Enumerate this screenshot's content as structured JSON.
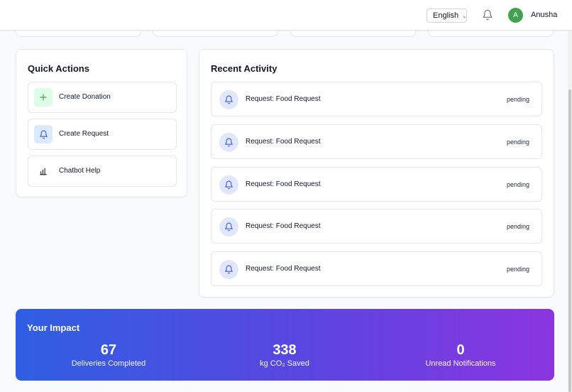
{
  "header": {
    "language": "English",
    "avatar_initial": "A",
    "user_name": "Anusha"
  },
  "quick_actions": {
    "title": "Quick Actions",
    "items": [
      {
        "label": "Create Donation",
        "icon": "plus-icon"
      },
      {
        "label": "Create Request",
        "icon": "bell-icon"
      },
      {
        "label": "Chatbot Help",
        "icon": "bar-chart-icon"
      }
    ]
  },
  "recent_activity": {
    "title": "Recent Activity",
    "items": [
      {
        "label": "Request: Food Request",
        "status": "pending"
      },
      {
        "label": "Request: Food Request",
        "status": "pending"
      },
      {
        "label": "Request: Food Request",
        "status": "pending"
      },
      {
        "label": "Request: Food Request",
        "status": "pending"
      },
      {
        "label": "Request: Food Request",
        "status": "pending"
      }
    ]
  },
  "impact": {
    "title": "Your Impact",
    "stats": [
      {
        "value": "67",
        "label": "Deliveries Completed"
      },
      {
        "value": "338",
        "label": "kg CO₂ Saved"
      },
      {
        "value": "0",
        "label": "Unread Notifications"
      }
    ]
  },
  "colors": {
    "accent_green": "#3fa34d",
    "icon_blue_bg": "#e0e7ff",
    "gradient_start": "#2f5fe3",
    "gradient_end": "#8b35e0"
  }
}
